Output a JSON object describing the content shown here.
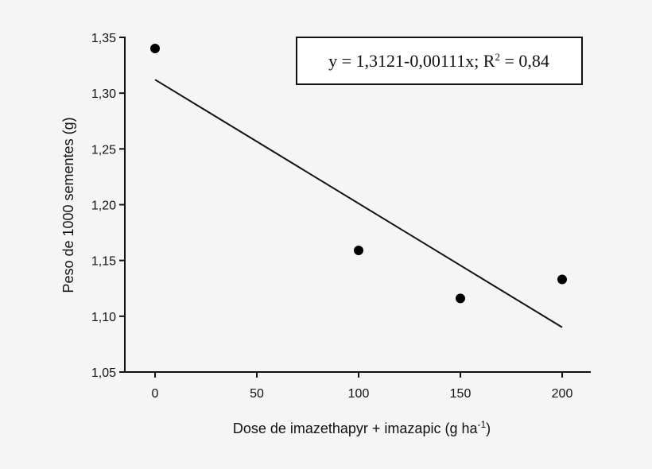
{
  "chart_data": {
    "type": "scatter",
    "title": "",
    "xlabel": "Dose de imazethapyr + imazapic (g ha-1)",
    "xlabel_parts": {
      "main": "Dose de imazethapyr + imazapic (g ha",
      "sup": "-1",
      "end": ")"
    },
    "ylabel": "Peso de 1000 sementes (g)",
    "x_ticks": [
      0,
      50,
      100,
      150,
      200
    ],
    "x_tick_labels": [
      "0",
      "50",
      "100",
      "150",
      "200"
    ],
    "y_ticks": [
      1.05,
      1.1,
      1.15,
      1.2,
      1.25,
      1.3,
      1.35
    ],
    "y_tick_labels": [
      "1,05",
      "1,10",
      "1,15",
      "1,20",
      "1,25",
      "1,30",
      "1,35"
    ],
    "xlim": [
      -15,
      215
    ],
    "ylim": [
      1.05,
      1.35
    ],
    "grid": false,
    "series": [
      {
        "name": "observed",
        "type": "scatter",
        "x": [
          0,
          100,
          150,
          200
        ],
        "y": [
          1.34,
          1.159,
          1.116,
          1.133
        ]
      },
      {
        "name": "fit",
        "type": "line",
        "x": [
          0,
          200
        ],
        "y": [
          1.3121,
          1.0901
        ]
      }
    ],
    "annotation": {
      "text_before": "y = 1,3121-0,00111x; R",
      "sup": "2",
      "text_after": " = 0,84",
      "full": "y = 1,3121-0,00111x; R² = 0,84"
    }
  }
}
